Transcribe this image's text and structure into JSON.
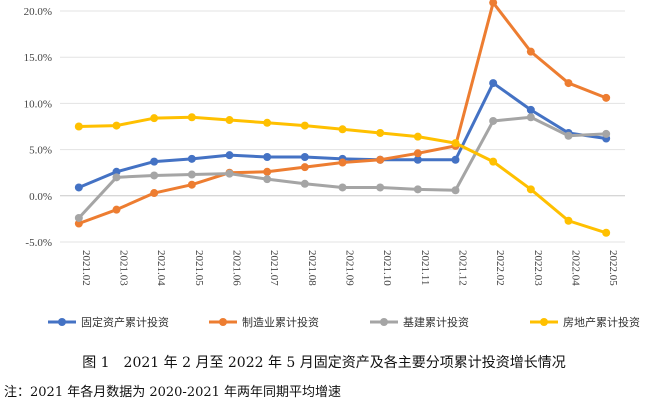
{
  "chart_data": {
    "type": "line",
    "categories": [
      "2021.02",
      "2021.03",
      "2021.04",
      "2021.05",
      "2021.06",
      "2021.07",
      "2021.08",
      "2021.09",
      "2021.10",
      "2021.11",
      "2021.12",
      "2022.02",
      "2022.03",
      "2022.04",
      "2022.05"
    ],
    "y_ticks": [
      "20.0%",
      "15.0%",
      "10.0%",
      "5.0%",
      "0.0%",
      "-5.0%"
    ],
    "ylim": [
      -5,
      20
    ],
    "grid": true,
    "legend_position": "bottom",
    "series": [
      {
        "name": "固定资产累计投资",
        "color": "#4472C4",
        "values": [
          0.9,
          2.6,
          3.7,
          4.0,
          4.4,
          4.2,
          4.2,
          4.0,
          3.9,
          3.9,
          3.9,
          12.2,
          9.3,
          6.8,
          6.2
        ]
      },
      {
        "name": "制造业累计投资",
        "color": "#ED7D31",
        "values": [
          -3.0,
          -1.5,
          0.3,
          1.2,
          2.5,
          2.6,
          3.1,
          3.6,
          3.9,
          4.6,
          5.4,
          20.9,
          15.6,
          12.2,
          10.6
        ]
      },
      {
        "name": "基建累计投资",
        "color": "#A5A5A5",
        "values": [
          -2.4,
          2.0,
          2.2,
          2.3,
          2.4,
          1.8,
          1.3,
          0.9,
          0.9,
          0.7,
          0.6,
          8.1,
          8.5,
          6.5,
          6.7
        ]
      },
      {
        "name": "房地产累计投资",
        "color": "#FFC000",
        "values": [
          7.5,
          7.6,
          8.4,
          8.5,
          8.2,
          7.9,
          7.6,
          7.2,
          6.8,
          6.4,
          5.7,
          3.7,
          0.7,
          -2.7,
          -4.0
        ]
      }
    ]
  },
  "caption": {
    "title": "图 1　2021 年 2 月至 2022 年 5 月固定资产及各主要分项累计投资增长情况",
    "note": "注：2021 年各月数据为 2020-2021 年两年同期平均增速"
  }
}
